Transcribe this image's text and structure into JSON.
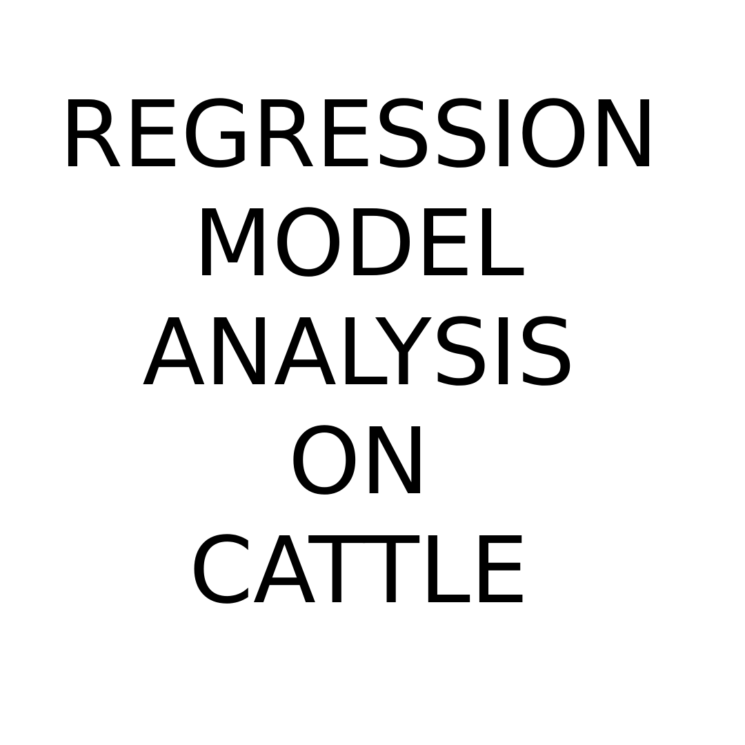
{
  "title": {
    "lines": [
      "REGRESSION",
      "MODEL",
      "ANALYSIS",
      "ON",
      "CATTLE"
    ]
  },
  "colors": {
    "background": "#ffffff",
    "text": "#000000"
  }
}
